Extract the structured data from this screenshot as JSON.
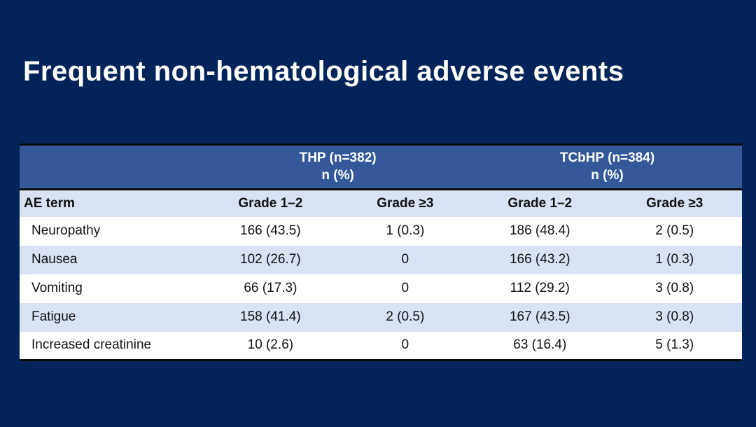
{
  "slide": {
    "title": "Frequent non-hematological adverse events"
  },
  "table": {
    "group_headers": [
      {
        "line1": "THP (n=382)",
        "line2": "n (%)"
      },
      {
        "line1": "TCbHP (n=384)",
        "line2": "n (%)"
      }
    ],
    "column_headers": [
      "AE term",
      "Grade 1–2",
      "Grade ≥3",
      "Grade 1–2",
      "Grade ≥3"
    ],
    "rows": [
      {
        "term": "Neuropathy",
        "values": [
          "166 (43.5)",
          "1 (0.3)",
          "186 (48.4)",
          "2 (0.5)"
        ]
      },
      {
        "term": "Nausea",
        "values": [
          "102 (26.7)",
          "0",
          "166 (43.2)",
          "1 (0.3)"
        ]
      },
      {
        "term": "Vomiting",
        "values": [
          "66 (17.3)",
          "0",
          "112 (29.2)",
          "3 (0.8)"
        ]
      },
      {
        "term": "Fatigue",
        "values": [
          "158 (41.4)",
          "2 (0.5)",
          "167 (43.5)",
          "3 (0.8)"
        ]
      },
      {
        "term": "Increased creatinine",
        "values": [
          "10 (2.6)",
          "0",
          "63 (16.4)",
          "5 (1.3)"
        ]
      }
    ]
  },
  "theme": {
    "background": "#02245A",
    "header_blue": "#35589B",
    "row_alt_blue": "#D9E2F3",
    "row_white": "#FFFFFF",
    "rule_black": "#0B0B0B",
    "title_text": "#FFFFFF",
    "cell_text": "#111111"
  }
}
